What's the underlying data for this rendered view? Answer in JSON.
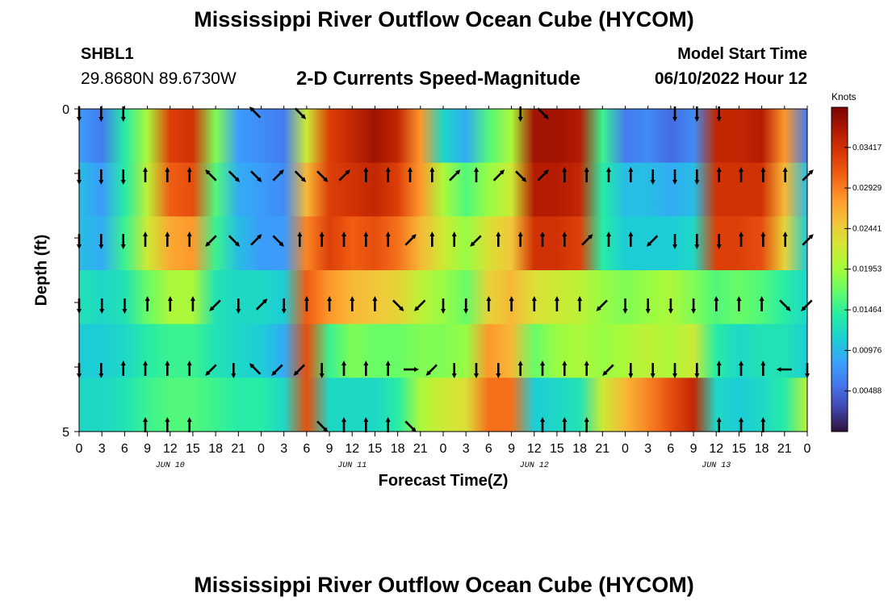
{
  "page": {
    "title": "Mississippi River Outflow Ocean Cube (HYCOM)",
    "station_id": "SHBL1",
    "station_coords": "29.8680N  89.6730W",
    "model_start_label": "Model Start Time",
    "model_start_value": "06/10/2022 Hour 12",
    "second_title": "Mississippi River Outflow Ocean Cube (HYCOM)"
  },
  "chart_data": {
    "type": "heatmap",
    "title": "2-D Currents Speed-Magnitude",
    "xlabel": "Forecast Time(Z)",
    "ylabel": "Depth (ft)",
    "ylim": [
      0,
      5
    ],
    "y_ticks": [
      "0",
      "5"
    ],
    "x_ticks": [
      "0",
      "3",
      "6",
      "9",
      "12",
      "15",
      "18",
      "21",
      "0",
      "3",
      "6",
      "9",
      "12",
      "15",
      "18",
      "21",
      "0",
      "3",
      "6",
      "9",
      "12",
      "15",
      "18",
      "21",
      "0",
      "3",
      "6",
      "9",
      "12",
      "15",
      "18",
      "21",
      "0"
    ],
    "day_labels": [
      "JUN 10",
      "JUN 11",
      "JUN 12",
      "JUN 13"
    ],
    "colorbar": {
      "label": "Knots",
      "ticks": [
        "0.03417",
        "0.02929",
        "0.02441",
        "0.01953",
        "0.01464",
        "0.00976",
        "0.00488"
      ],
      "range": [
        0,
        0.039
      ],
      "colors": [
        "#30123b",
        "#4145ab",
        "#4675ed",
        "#39a2fc",
        "#1bcfd4",
        "#24eca6",
        "#61fc6c",
        "#a4fc3b",
        "#d1e834",
        "#f3c63a",
        "#fe9b2d",
        "#f36315",
        "#d93806",
        "#b11901",
        "#7a0403"
      ]
    },
    "depth_rows": [
      0,
      1,
      2,
      3,
      4,
      5
    ],
    "time_hours": [
      0,
      3,
      6,
      9,
      12,
      15,
      18,
      21,
      24,
      27,
      30,
      33,
      36,
      39,
      42,
      45,
      48,
      51,
      54,
      57,
      60,
      63,
      66,
      69,
      72,
      75,
      78,
      81,
      84,
      87,
      90,
      93,
      96
    ],
    "speed_knots": [
      [
        0.008,
        0.006,
        0.014,
        0.02,
        0.033,
        0.034,
        0.018,
        0.008,
        0.007,
        0.006,
        0.022,
        0.033,
        0.035,
        0.037,
        0.035,
        0.028,
        0.012,
        0.009,
        0.016,
        0.02,
        0.037,
        0.037,
        0.036,
        0.015,
        0.006,
        0.007,
        0.005,
        0.007,
        0.035,
        0.035,
        0.036,
        0.028,
        0.006
      ],
      [
        0.01,
        0.008,
        0.014,
        0.021,
        0.031,
        0.032,
        0.016,
        0.009,
        0.008,
        0.007,
        0.026,
        0.033,
        0.034,
        0.035,
        0.033,
        0.028,
        0.02,
        0.016,
        0.019,
        0.022,
        0.036,
        0.036,
        0.035,
        0.014,
        0.01,
        0.01,
        0.009,
        0.01,
        0.034,
        0.034,
        0.034,
        0.026,
        0.01
      ],
      [
        0.01,
        0.009,
        0.015,
        0.022,
        0.027,
        0.028,
        0.015,
        0.01,
        0.008,
        0.008,
        0.029,
        0.033,
        0.031,
        0.032,
        0.03,
        0.026,
        0.022,
        0.019,
        0.023,
        0.025,
        0.034,
        0.034,
        0.033,
        0.014,
        0.011,
        0.011,
        0.011,
        0.012,
        0.033,
        0.033,
        0.032,
        0.024,
        0.011
      ],
      [
        0.013,
        0.012,
        0.013,
        0.017,
        0.02,
        0.02,
        0.013,
        0.012,
        0.012,
        0.011,
        0.031,
        0.028,
        0.026,
        0.025,
        0.024,
        0.021,
        0.019,
        0.017,
        0.024,
        0.026,
        0.023,
        0.022,
        0.021,
        0.019,
        0.018,
        0.019,
        0.02,
        0.018,
        0.016,
        0.017,
        0.016,
        0.014,
        0.012
      ],
      [
        0.011,
        0.011,
        0.012,
        0.014,
        0.015,
        0.015,
        0.013,
        0.012,
        0.011,
        0.009,
        0.032,
        0.015,
        0.018,
        0.017,
        0.017,
        0.018,
        0.018,
        0.019,
        0.028,
        0.026,
        0.017,
        0.019,
        0.02,
        0.019,
        0.02,
        0.021,
        0.02,
        0.022,
        0.014,
        0.012,
        0.013,
        0.013,
        0.011
      ],
      [
        0.012,
        0.012,
        0.013,
        0.015,
        0.016,
        0.016,
        0.015,
        0.014,
        0.014,
        0.012,
        0.032,
        0.012,
        0.012,
        0.012,
        0.014,
        0.02,
        0.022,
        0.023,
        0.03,
        0.03,
        0.011,
        0.012,
        0.013,
        0.022,
        0.026,
        0.029,
        0.032,
        0.035,
        0.012,
        0.011,
        0.012,
        0.014,
        0.021
      ]
    ],
    "vector_rows": [
      {
        "depth_index": 0,
        "dirs": [
          "s",
          "s",
          "s",
          null,
          null,
          null,
          null,
          null,
          "nw",
          null,
          "se",
          null,
          null,
          null,
          null,
          null,
          null,
          null,
          null,
          null,
          "s",
          "se",
          null,
          null,
          null,
          null,
          null,
          "s",
          "s",
          "s",
          null,
          null,
          null,
          null
        ]
      },
      {
        "depth_index": 1,
        "dirs": [
          "s",
          "s",
          "s",
          "n",
          "n",
          "n",
          "nw",
          "se",
          "se",
          "ne",
          "se",
          "se",
          "ne",
          "n",
          "n",
          "n",
          "n",
          "ne",
          "n",
          "ne",
          "se",
          "ne",
          "n",
          "n",
          "n",
          "n",
          "s",
          "s",
          "s",
          "n",
          "n",
          "n",
          "n",
          "ne"
        ]
      },
      {
        "depth_index": 2,
        "dirs": [
          "s",
          "s",
          "s",
          "n",
          "n",
          "n",
          "sw",
          "se",
          "ne",
          "se",
          "n",
          "n",
          "n",
          "n",
          "n",
          "ne",
          "n",
          "n",
          "sw",
          "n",
          "n",
          "n",
          "n",
          "ne",
          "n",
          "n",
          "sw",
          "s",
          "s",
          "s",
          "n",
          "n",
          "n",
          "ne"
        ]
      },
      {
        "depth_index": 3,
        "dirs": [
          "s",
          "s",
          "s",
          "n",
          "n",
          "n",
          "sw",
          "s",
          "ne",
          "s",
          "n",
          "n",
          "n",
          "n",
          "se",
          "sw",
          "s",
          "s",
          "n",
          "n",
          "n",
          "n",
          "n",
          "sw",
          "s",
          "s",
          "s",
          "s",
          "n",
          "n",
          "n",
          "se",
          "sw"
        ]
      },
      {
        "depth_index": 4,
        "dirs": [
          "s",
          "s",
          "n",
          "n",
          "n",
          "n",
          "sw",
          "s",
          "nw",
          "sw",
          "sw",
          "s",
          "n",
          "n",
          "n",
          "e",
          "sw",
          "s",
          "s",
          "s",
          "n",
          "n",
          "n",
          "n",
          "sw",
          "s",
          "s",
          "s",
          "s",
          "n",
          "n",
          "n",
          "w",
          "s"
        ]
      },
      {
        "depth_index": 5,
        "dirs": [
          null,
          null,
          null,
          "n",
          "n",
          "n",
          null,
          null,
          null,
          null,
          null,
          "se",
          "n",
          "n",
          "n",
          "se",
          null,
          null,
          null,
          null,
          null,
          "n",
          "n",
          "n",
          null,
          null,
          null,
          null,
          null,
          "n",
          "n",
          "n",
          null,
          null
        ]
      }
    ]
  }
}
